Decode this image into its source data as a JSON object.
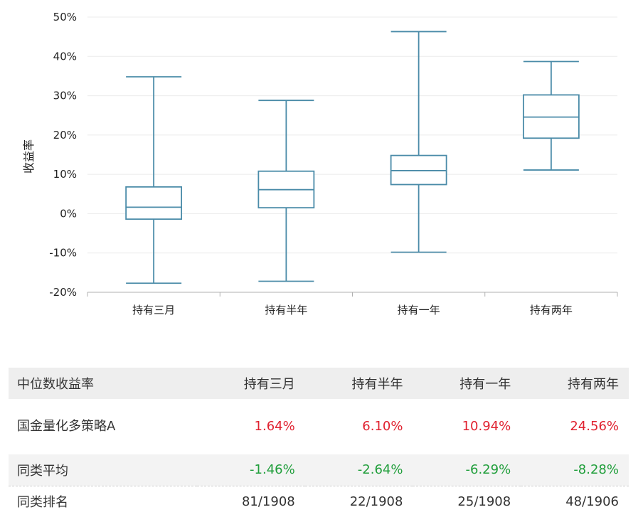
{
  "chart_data": {
    "type": "boxplot",
    "ylabel": "收益率",
    "ylim": [
      -20,
      50
    ],
    "yticks": [
      "50%",
      "40%",
      "30%",
      "20%",
      "10%",
      "0%",
      "-10%",
      "-20%"
    ],
    "ytick_values": [
      50,
      40,
      30,
      20,
      10,
      0,
      -10,
      -20
    ],
    "categories": [
      "持有三月",
      "持有半年",
      "持有一年",
      "持有两年"
    ],
    "boxes": [
      {
        "min": -17.7,
        "q1": -1.4,
        "median": 1.64,
        "q3": 6.8,
        "max": 34.8
      },
      {
        "min": -17.2,
        "q1": 1.5,
        "median": 6.1,
        "q3": 10.8,
        "max": 28.8
      },
      {
        "min": -9.8,
        "q1": 7.4,
        "median": 10.94,
        "q3": 14.8,
        "max": 46.3
      },
      {
        "min": 11.1,
        "q1": 19.2,
        "median": 24.56,
        "q3": 30.2,
        "max": 38.7
      }
    ],
    "grid": true,
    "color": "#4a8ba8"
  },
  "table": {
    "header": [
      "中位数收益率",
      "持有三月",
      "持有半年",
      "持有一年",
      "持有两年"
    ],
    "fund": {
      "name": "国金量化多策略A",
      "values": [
        "1.64%",
        "6.10%",
        "10.94%",
        "24.56%"
      ]
    },
    "average": {
      "name": "同类平均",
      "values": [
        "-1.46%",
        "-2.64%",
        "-6.29%",
        "-8.28%"
      ]
    },
    "rank": {
      "name": "同类排名",
      "values": [
        "81/1908",
        "22/1908",
        "25/1908",
        "48/1906"
      ]
    }
  },
  "colors": {
    "positive": "#e0212f",
    "negative": "#1f9e3a",
    "box": "#4a8ba8"
  }
}
